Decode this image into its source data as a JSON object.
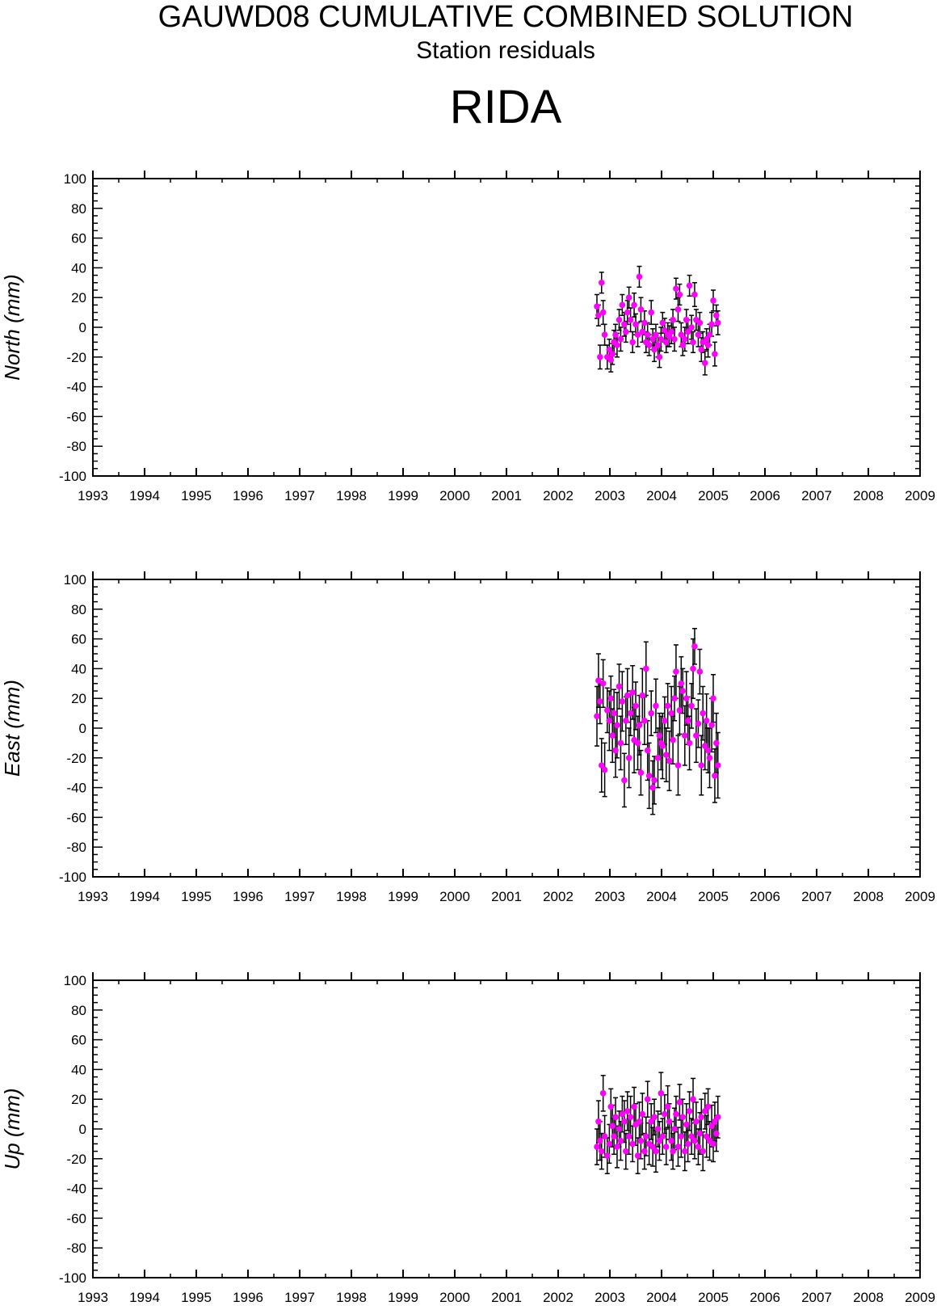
{
  "header": {
    "title": "GAUWD08 CUMULATIVE COMBINED SOLUTION",
    "subtitle": "Station residuals",
    "station": "RIDA"
  },
  "colors": {
    "point": "#ff00ff",
    "errorbar": "#000000",
    "axis": "#000000"
  },
  "chart_data": [
    {
      "type": "scatter",
      "ylabel": "North (mm)",
      "xlim": [
        1993,
        2009
      ],
      "ylim": [
        -100,
        100
      ],
      "xticks": [
        "1993",
        "1994",
        "1995",
        "1996",
        "1997",
        "1998",
        "1999",
        "2000",
        "2001",
        "2002",
        "2003",
        "2004",
        "2005",
        "2006",
        "2007",
        "2008",
        "2009"
      ],
      "yticks": [
        "100",
        "80",
        "60",
        "40",
        "20",
        "0",
        "-20",
        "-40",
        "-60",
        "-80",
        "-100"
      ],
      "series": [
        {
          "x": [
            2002.75,
            2002.78,
            2002.81,
            2002.84,
            2002.87,
            2002.9,
            2002.95,
            2002.99,
            2003.02,
            2003.05,
            2003.08,
            2003.11,
            2003.14,
            2003.18,
            2003.21,
            2003.24,
            2003.28,
            2003.31,
            2003.34,
            2003.37,
            2003.4,
            2003.44,
            2003.47,
            2003.5,
            2003.54,
            2003.57,
            2003.6,
            2003.63,
            2003.67,
            2003.7,
            2003.73,
            2003.76,
            2003.8,
            2003.83,
            2003.86,
            2003.89,
            2003.93,
            2003.96,
            2003.99,
            2004.02,
            2004.06,
            2004.09,
            2004.12,
            2004.15,
            2004.19,
            2004.22,
            2004.25,
            2004.28,
            2004.32,
            2004.35,
            2004.38,
            2004.41,
            2004.45,
            2004.48,
            2004.51,
            2004.54,
            2004.58,
            2004.61,
            2004.64,
            2004.67,
            2004.71,
            2004.74,
            2004.77,
            2004.8,
            2004.84,
            2004.87,
            2004.9,
            2004.93,
            2004.97,
            2005.0,
            2005.03,
            2005.06,
            2005.09
          ],
          "y": [
            14,
            8,
            -20,
            30,
            10,
            -5,
            -20,
            -15,
            -22,
            -18,
            -10,
            -5,
            -12,
            5,
            -8,
            15,
            2,
            -3,
            10,
            20,
            5,
            -10,
            15,
            2,
            -5,
            34,
            12,
            -3,
            3,
            -10,
            -5,
            -12,
            10,
            -8,
            -15,
            -5,
            -12,
            -20,
            -8,
            3,
            -2,
            -10,
            -5,
            -6,
            -3,
            5,
            -8,
            26,
            12,
            22,
            -5,
            -12,
            -8,
            5,
            -3,
            28,
            0,
            -10,
            22,
            5,
            -5,
            3,
            -15,
            -10,
            -24,
            -8,
            -12,
            -5,
            2,
            18,
            -18,
            8,
            3
          ],
          "err": [
            8,
            7,
            8,
            7,
            8,
            7,
            8,
            7,
            8,
            7,
            8,
            7,
            8,
            7,
            8,
            7,
            8,
            7,
            8,
            7,
            8,
            7,
            8,
            7,
            8,
            7,
            8,
            7,
            8,
            7,
            8,
            7,
            8,
            7,
            8,
            7,
            8,
            7,
            8,
            7,
            8,
            7,
            8,
            7,
            8,
            7,
            8,
            7,
            8,
            7,
            8,
            7,
            8,
            7,
            8,
            7,
            8,
            7,
            8,
            7,
            8,
            7,
            8,
            7,
            8,
            7,
            8,
            7,
            8,
            7,
            8,
            7,
            8
          ]
        }
      ]
    },
    {
      "type": "scatter",
      "ylabel": "East (mm)",
      "xlim": [
        1993,
        2009
      ],
      "ylim": [
        -100,
        100
      ],
      "xticks": [
        "1993",
        "1994",
        "1995",
        "1996",
        "1997",
        "1998",
        "1999",
        "2000",
        "2001",
        "2002",
        "2003",
        "2004",
        "2005",
        "2006",
        "2007",
        "2008",
        "2009"
      ],
      "yticks": [
        "100",
        "80",
        "60",
        "40",
        "20",
        "0",
        "-20",
        "-40",
        "-60",
        "-80",
        "-100"
      ],
      "series": [
        {
          "x": [
            2002.75,
            2002.78,
            2002.81,
            2002.84,
            2002.87,
            2002.9,
            2002.95,
            2002.99,
            2003.02,
            2003.05,
            2003.08,
            2003.11,
            2003.14,
            2003.18,
            2003.21,
            2003.24,
            2003.28,
            2003.31,
            2003.34,
            2003.37,
            2003.4,
            2003.44,
            2003.47,
            2003.5,
            2003.54,
            2003.57,
            2003.6,
            2003.63,
            2003.67,
            2003.7,
            2003.73,
            2003.76,
            2003.8,
            2003.83,
            2003.86,
            2003.89,
            2003.93,
            2003.96,
            2003.99,
            2004.02,
            2004.06,
            2004.09,
            2004.12,
            2004.15,
            2004.19,
            2004.22,
            2004.25,
            2004.28,
            2004.32,
            2004.35,
            2004.38,
            2004.41,
            2004.45,
            2004.48,
            2004.51,
            2004.54,
            2004.58,
            2004.61,
            2004.64,
            2004.67,
            2004.71,
            2004.74,
            2004.77,
            2004.8,
            2004.84,
            2004.87,
            2004.9,
            2004.93,
            2004.97,
            2005.0,
            2005.03,
            2005.06,
            2005.09
          ],
          "y": [
            8,
            32,
            18,
            -25,
            30,
            -28,
            12,
            5,
            20,
            -5,
            10,
            -15,
            2,
            28,
            -10,
            18,
            -35,
            5,
            22,
            -20,
            10,
            24,
            -8,
            15,
            -10,
            2,
            -30,
            22,
            5,
            40,
            -15,
            -32,
            10,
            -40,
            -35,
            15,
            -20,
            -5,
            -10,
            -12,
            5,
            -18,
            15,
            -22,
            10,
            -8,
            20,
            38,
            -25,
            12,
            30,
            25,
            -5,
            20,
            5,
            -10,
            15,
            40,
            55,
            -5,
            3,
            38,
            -25,
            10,
            -12,
            5,
            -15,
            -20,
            2,
            20,
            -32,
            -10,
            -25
          ],
          "err": [
            20,
            18,
            15,
            18,
            16,
            18,
            15,
            20,
            15,
            18,
            16,
            18,
            22,
            15,
            18,
            20,
            18,
            16,
            18,
            20,
            15,
            18,
            22,
            16,
            18,
            20,
            15,
            18,
            16,
            18,
            20,
            22,
            15,
            18,
            16,
            18,
            20,
            15,
            18,
            22,
            16,
            18,
            15,
            20,
            18,
            16,
            15,
            18,
            20,
            16,
            18,
            15,
            20,
            18,
            16,
            18,
            15,
            20,
            12,
            18,
            16,
            15,
            20,
            18,
            16,
            18,
            15,
            20,
            18,
            16,
            18,
            20,
            22
          ]
        }
      ]
    },
    {
      "type": "scatter",
      "ylabel": "Up (mm)",
      "xlim": [
        1993,
        2009
      ],
      "ylim": [
        -100,
        100
      ],
      "xticks": [
        "1993",
        "1994",
        "1995",
        "1996",
        "1997",
        "1998",
        "1999",
        "2000",
        "2001",
        "2002",
        "2003",
        "2004",
        "2005",
        "2006",
        "2007",
        "2008",
        "2009"
      ],
      "yticks": [
        "100",
        "80",
        "60",
        "40",
        "20",
        "0",
        "-20",
        "-40",
        "-60",
        "-80",
        "-100"
      ],
      "series": [
        {
          "x": [
            2002.75,
            2002.78,
            2002.81,
            2002.84,
            2002.87,
            2002.9,
            2002.95,
            2002.99,
            2003.02,
            2003.05,
            2003.08,
            2003.11,
            2003.14,
            2003.18,
            2003.21,
            2003.24,
            2003.28,
            2003.31,
            2003.34,
            2003.37,
            2003.4,
            2003.44,
            2003.47,
            2003.5,
            2003.54,
            2003.57,
            2003.6,
            2003.63,
            2003.67,
            2003.7,
            2003.73,
            2003.76,
            2003.8,
            2003.83,
            2003.86,
            2003.89,
            2003.93,
            2003.96,
            2003.99,
            2004.02,
            2004.06,
            2004.09,
            2004.12,
            2004.15,
            2004.19,
            2004.22,
            2004.25,
            2004.28,
            2004.32,
            2004.35,
            2004.38,
            2004.41,
            2004.45,
            2004.48,
            2004.51,
            2004.54,
            2004.58,
            2004.61,
            2004.64,
            2004.67,
            2004.71,
            2004.74,
            2004.77,
            2004.8,
            2004.84,
            2004.87,
            2004.9,
            2004.93,
            2004.97,
            2005.0,
            2005.03,
            2005.06,
            2005.09
          ],
          "y": [
            -12,
            5,
            -8,
            -15,
            24,
            -5,
            -18,
            -10,
            15,
            2,
            -5,
            8,
            -12,
            0,
            -8,
            10,
            5,
            -15,
            12,
            -5,
            8,
            -10,
            15,
            3,
            -18,
            5,
            -8,
            10,
            -15,
            -5,
            20,
            -10,
            5,
            -12,
            8,
            -15,
            0,
            -8,
            24,
            -5,
            10,
            -12,
            15,
            5,
            -8,
            -15,
            0,
            10,
            -12,
            18,
            -5,
            8,
            -15,
            3,
            -10,
            12,
            -5,
            20,
            -8,
            5,
            -12,
            -3,
            8,
            -15,
            12,
            -5,
            15,
            -8,
            2,
            -10,
            5,
            -3,
            8
          ],
          "err": [
            12,
            14,
            13,
            12,
            12,
            14,
            12,
            13,
            12,
            14,
            12,
            13,
            14,
            12,
            13,
            12,
            14,
            12,
            13,
            12,
            14,
            12,
            13,
            14,
            12,
            13,
            12,
            14,
            12,
            13,
            12,
            14,
            12,
            13,
            12,
            14,
            12,
            13,
            14,
            12,
            13,
            12,
            14,
            12,
            13,
            12,
            14,
            12,
            13,
            12,
            14,
            12,
            13,
            14,
            12,
            13,
            12,
            14,
            12,
            13,
            12,
            14,
            12,
            13,
            12,
            14,
            12,
            13,
            14,
            12,
            13,
            12,
            14
          ]
        }
      ]
    }
  ]
}
